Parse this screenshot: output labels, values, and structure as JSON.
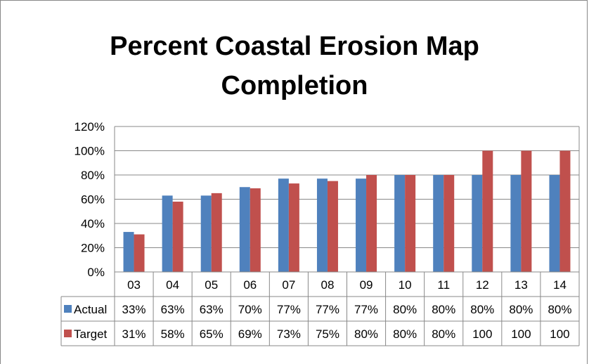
{
  "chart_data": {
    "type": "bar",
    "title_lines": [
      "Percent Coastal Erosion Map",
      "Completion"
    ],
    "categories": [
      "03",
      "04",
      "05",
      "06",
      "07",
      "08",
      "09",
      "10",
      "11",
      "12",
      "13",
      "14"
    ],
    "series": [
      {
        "name": "Actual",
        "color": "#4f81bd",
        "values": [
          33,
          63,
          63,
          70,
          77,
          77,
          77,
          80,
          80,
          80,
          80,
          80
        ],
        "table_labels": [
          "33%",
          "63%",
          "63%",
          "70%",
          "77%",
          "77%",
          "77%",
          "80%",
          "80%",
          "80%",
          "80%",
          "80%"
        ]
      },
      {
        "name": "Target",
        "color": "#c0504d",
        "values": [
          31,
          58,
          65,
          69,
          73,
          75,
          80,
          80,
          80,
          100,
          100,
          100
        ],
        "table_labels": [
          "31%",
          "58%",
          "65%",
          "69%",
          "73%",
          "75%",
          "80%",
          "80%",
          "80%",
          "100",
          "100",
          "100"
        ]
      }
    ],
    "y_ticks": [
      "0%",
      "20%",
      "40%",
      "60%",
      "80%",
      "100%",
      "120%"
    ],
    "ylim": [
      0,
      120
    ],
    "grid": true,
    "legend": "data-table"
  }
}
